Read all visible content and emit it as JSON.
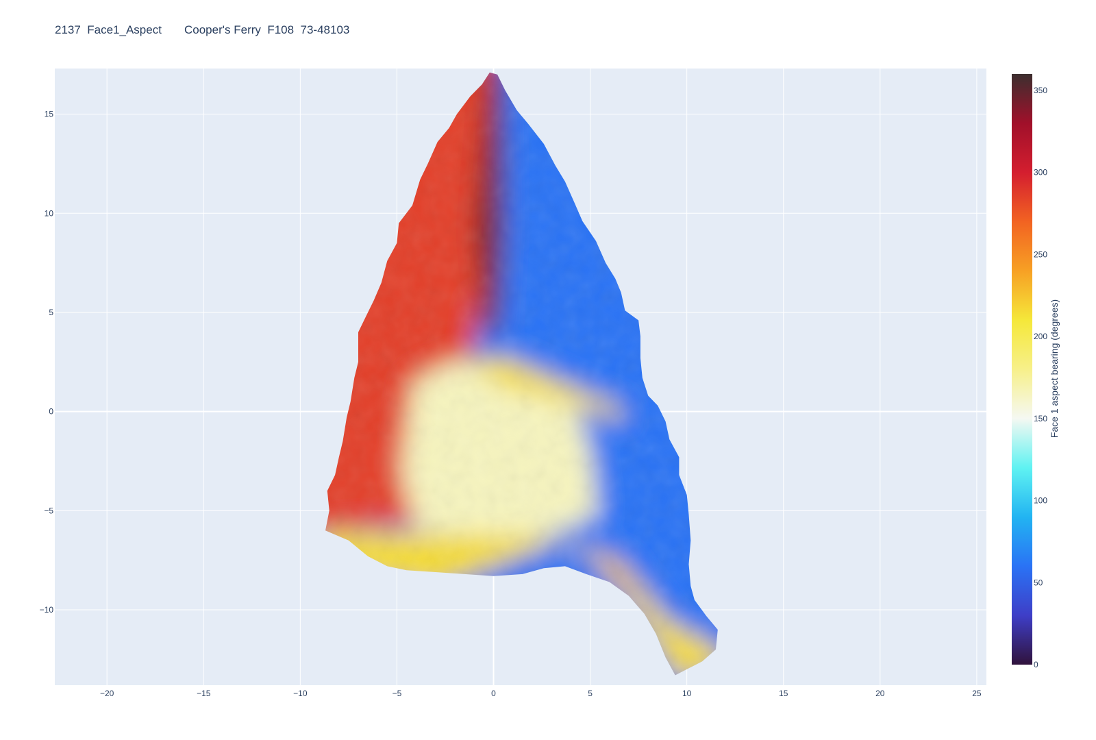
{
  "title": "2137  Face1_Aspect       Cooper's Ferry  F108  73-48103",
  "chart_data": {
    "type": "heatmap",
    "title": "2137  Face1_Aspect       Cooper's Ferry  F108  73-48103",
    "xlabel": "",
    "ylabel": "",
    "xlim": [
      -22.7,
      25.5
    ],
    "ylim": [
      -13.8,
      17.3
    ],
    "x_ticks": [
      -20,
      -15,
      -10,
      -5,
      0,
      5,
      10,
      15,
      20,
      25
    ],
    "y_ticks": [
      -10,
      -5,
      0,
      5,
      10,
      15
    ],
    "grid": true,
    "plot_background": "#E5ECF6",
    "colorbar": {
      "title": "Face 1 aspect bearing (degrees)",
      "range": [
        0,
        360
      ],
      "ticks": [
        0,
        50,
        100,
        150,
        200,
        250,
        300,
        350
      ],
      "colorscale": [
        "#30123b",
        "#3e3ec7",
        "#2a73f5",
        "#22b4f2",
        "#5ff2f2",
        "#f5f8f2",
        "#f7f08a",
        "#f5e83a",
        "#f7a024",
        "#f26322",
        "#d41e2f",
        "#a0102a",
        "#3c2f2f"
      ]
    },
    "outline": {
      "description": "projectile point outline (x, y in data units)",
      "points": [
        [
          -0.2,
          17.1
        ],
        [
          -0.6,
          16.5
        ],
        [
          -1.2,
          15.9
        ],
        [
          -1.9,
          15.0
        ],
        [
          -2.3,
          14.3
        ],
        [
          -2.9,
          13.6
        ],
        [
          -3.4,
          12.5
        ],
        [
          -3.8,
          11.7
        ],
        [
          -4.2,
          10.4
        ],
        [
          -4.9,
          9.5
        ],
        [
          -5.0,
          8.5
        ],
        [
          -5.5,
          7.6
        ],
        [
          -5.8,
          6.5
        ],
        [
          -6.2,
          5.6
        ],
        [
          -6.5,
          5.0
        ],
        [
          -7.0,
          4.0
        ],
        [
          -7.0,
          2.5
        ],
        [
          -7.2,
          1.7
        ],
        [
          -7.4,
          0.5
        ],
        [
          -7.6,
          -0.3
        ],
        [
          -7.8,
          -1.5
        ],
        [
          -8.0,
          -2.3
        ],
        [
          -8.2,
          -3.2
        ],
        [
          -8.6,
          -4.0
        ],
        [
          -8.5,
          -5.0
        ],
        [
          -8.7,
          -6.0
        ],
        [
          -7.5,
          -6.5
        ],
        [
          -6.5,
          -7.3
        ],
        [
          -5.5,
          -7.8
        ],
        [
          -4.5,
          -8.0
        ],
        [
          -3.0,
          -8.1
        ],
        [
          -1.5,
          -8.2
        ],
        [
          0.0,
          -8.3
        ],
        [
          1.5,
          -8.2
        ],
        [
          2.6,
          -7.9
        ],
        [
          3.7,
          -7.8
        ],
        [
          4.8,
          -8.2
        ],
        [
          6.0,
          -8.6
        ],
        [
          7.0,
          -9.3
        ],
        [
          7.8,
          -10.2
        ],
        [
          8.4,
          -11.2
        ],
        [
          8.9,
          -12.4
        ],
        [
          9.4,
          -13.3
        ],
        [
          10.0,
          -13.0
        ],
        [
          10.8,
          -12.6
        ],
        [
          11.5,
          -12.0
        ],
        [
          11.6,
          -11.0
        ],
        [
          11.0,
          -10.3
        ],
        [
          10.4,
          -9.5
        ],
        [
          10.2,
          -8.8
        ],
        [
          10.1,
          -7.7
        ],
        [
          10.2,
          -6.5
        ],
        [
          10.1,
          -5.2
        ],
        [
          10.0,
          -4.2
        ],
        [
          9.6,
          -3.2
        ],
        [
          9.6,
          -2.3
        ],
        [
          9.1,
          -1.4
        ],
        [
          8.9,
          -0.5
        ],
        [
          8.5,
          0.3
        ],
        [
          8.0,
          0.8
        ],
        [
          7.7,
          1.7
        ],
        [
          7.6,
          2.7
        ],
        [
          7.6,
          3.8
        ],
        [
          7.5,
          4.6
        ],
        [
          6.8,
          5.1
        ],
        [
          6.6,
          6.0
        ],
        [
          6.3,
          6.7
        ],
        [
          5.8,
          7.5
        ],
        [
          5.3,
          8.6
        ],
        [
          4.6,
          9.6
        ],
        [
          4.2,
          10.5
        ],
        [
          3.7,
          11.6
        ],
        [
          3.2,
          12.4
        ],
        [
          2.6,
          13.5
        ],
        [
          1.8,
          14.5
        ],
        [
          1.2,
          15.2
        ],
        [
          0.6,
          16.2
        ],
        [
          0.2,
          17.0
        ]
      ]
    },
    "zones": [
      {
        "name": "left face",
        "aspect_deg": 285
      },
      {
        "name": "right face",
        "aspect_deg": 60
      },
      {
        "name": "midrib",
        "aspect_deg": 345
      },
      {
        "name": "central flake scars",
        "aspect_deg": 165
      },
      {
        "name": "basal edge",
        "aspect_deg": 215
      },
      {
        "name": "stem bevel",
        "aspect_deg": 235
      }
    ]
  }
}
